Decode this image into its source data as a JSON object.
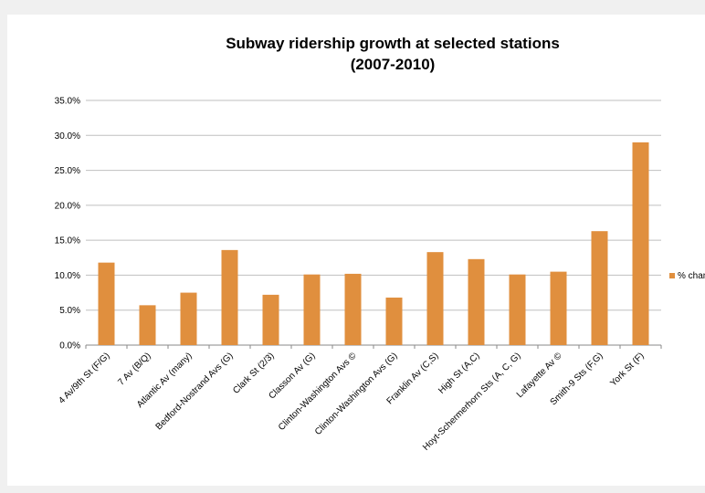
{
  "chart_data": {
    "type": "bar",
    "title": "Subway ridership growth at selected stations",
    "subtitle": "(2007-2010)",
    "xlabel": "",
    "ylabel": "",
    "categories": [
      "4 Av/9th St (F/G)",
      "7 Av (B/Q)",
      "Atlantic Av (many)",
      "Bedford-Nostrand Avs (G)",
      "Clark St (2/3)",
      "Classon Av (G)",
      "Clinton-Washington Avs ©",
      "Clinton-Washington Avs (G)",
      "Franklin Av (C,S)",
      "High St (A,C)",
      "Hoyt-Schermerhorn Sts (A, C, G)",
      "Lafayette Av ©",
      "Smith-9 Sts (F,G)",
      "York St (F)"
    ],
    "series": [
      {
        "name": "% chan",
        "values": [
          0.118,
          0.057,
          0.075,
          0.136,
          0.072,
          0.101,
          0.102,
          0.068,
          0.133,
          0.123,
          0.101,
          0.105,
          0.163,
          0.29
        ],
        "color": "#e08f3e"
      }
    ],
    "yticks": [
      "0.0%",
      "5.0%",
      "10.0%",
      "15.0%",
      "20.0%",
      "25.0%",
      "30.0%",
      "35.0%"
    ],
    "ylim": [
      0,
      0.35
    ],
    "grid": true,
    "legend_position": "right"
  }
}
